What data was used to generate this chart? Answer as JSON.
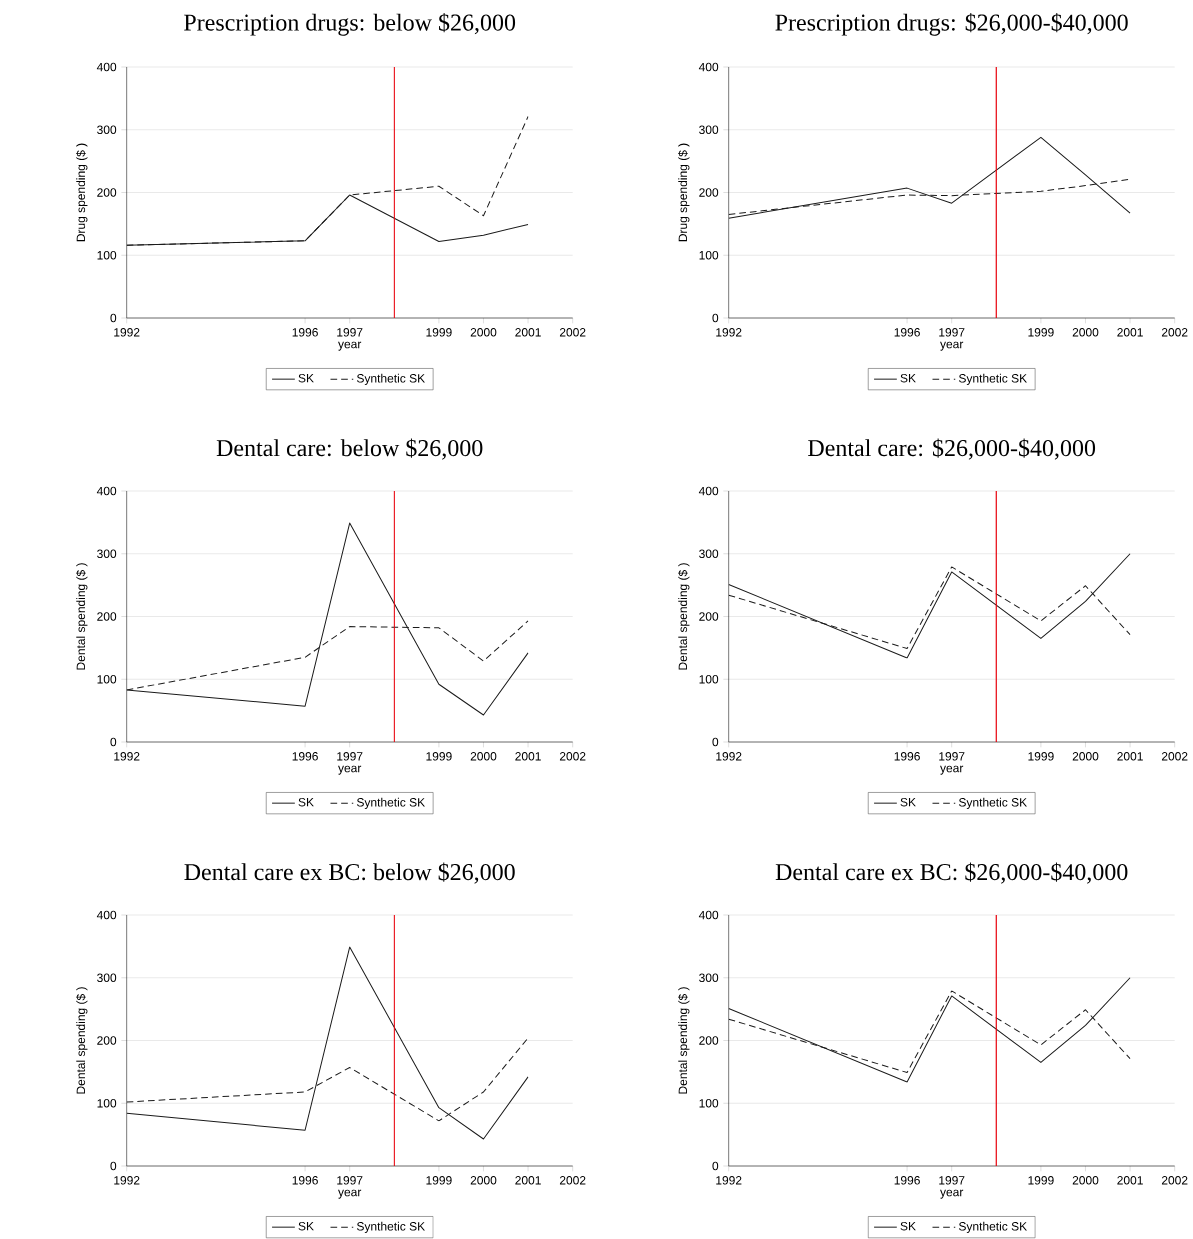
{
  "chart_data": [
    {
      "type": "line",
      "title": "Prescription drugs:  below $26,000",
      "xlabel": "year",
      "ylabel": "Drug spending ($ )",
      "x": [
        1992,
        1996,
        1997,
        1999,
        2000,
        2001
      ],
      "series": [
        {
          "name": "SK",
          "color": "#1a1a1a",
          "line_style": "solid",
          "values": [
            116,
            123,
            196,
            122,
            132,
            149
          ]
        },
        {
          "name": "Synthetic SK",
          "color": "#1a1a1a",
          "line_style": "dashed",
          "values": [
            116,
            123,
            196,
            210,
            163,
            321
          ]
        }
      ],
      "xlim": [
        1992,
        2002
      ],
      "ylim": [
        0,
        400
      ],
      "xticks": [
        1992,
        1996,
        1997,
        1999,
        2000,
        2001,
        2002
      ],
      "yticks": [
        0,
        100,
        200,
        300,
        400
      ],
      "grid": "y",
      "legend": "bottom",
      "ref_lines": [
        {
          "axis": "x",
          "value": 1998,
          "color": "#e8000b"
        }
      ]
    },
    {
      "type": "line",
      "title": "Prescription drugs:  $26,000-$40,000",
      "xlabel": "year",
      "ylabel": "Drug spending ($ )",
      "x": [
        1992,
        1996,
        1997,
        1999,
        2000,
        2001
      ],
      "series": [
        {
          "name": "SK",
          "color": "#1a1a1a",
          "line_style": "solid",
          "values": [
            159,
            207,
            183,
            288,
            228,
            167
          ]
        },
        {
          "name": "Synthetic SK",
          "color": "#1a1a1a",
          "line_style": "dashed",
          "values": [
            165,
            196,
            195,
            202,
            211,
            221
          ]
        }
      ],
      "xlim": [
        1992,
        2002
      ],
      "ylim": [
        0,
        400
      ],
      "xticks": [
        1992,
        1996,
        1997,
        1999,
        2000,
        2001,
        2002
      ],
      "yticks": [
        0,
        100,
        200,
        300,
        400
      ],
      "grid": "y",
      "legend": "bottom",
      "ref_lines": [
        {
          "axis": "x",
          "value": 1998,
          "color": "#e8000b"
        }
      ]
    },
    {
      "type": "line",
      "title": "Dental care:  below $26,000",
      "xlabel": "year",
      "ylabel": "Dental spending ($ )",
      "x": [
        1992,
        1996,
        1997,
        1999,
        2000,
        2001
      ],
      "series": [
        {
          "name": "SK",
          "color": "#1a1a1a",
          "line_style": "solid",
          "values": [
            83,
            57,
            349,
            92,
            43,
            142
          ]
        },
        {
          "name": "Synthetic SK",
          "color": "#1a1a1a",
          "line_style": "dashed",
          "values": [
            83,
            135,
            184,
            182,
            129,
            193
          ]
        }
      ],
      "xlim": [
        1992,
        2002
      ],
      "ylim": [
        0,
        400
      ],
      "xticks": [
        1992,
        1996,
        1997,
        1999,
        2000,
        2001,
        2002
      ],
      "yticks": [
        0,
        100,
        200,
        300,
        400
      ],
      "grid": "y",
      "legend": "bottom",
      "ref_lines": [
        {
          "axis": "x",
          "value": 1998,
          "color": "#e8000b"
        }
      ]
    },
    {
      "type": "line",
      "title": "Dental care:  $26,000-$40,000",
      "xlabel": "year",
      "ylabel": "Dental spending ($ )",
      "x": [
        1992,
        1996,
        1997,
        1999,
        2000,
        2001
      ],
      "series": [
        {
          "name": "SK",
          "color": "#1a1a1a",
          "line_style": "solid",
          "values": [
            251,
            134,
            271,
            165,
            224,
            300
          ]
        },
        {
          "name": "Synthetic SK",
          "color": "#1a1a1a",
          "line_style": "dashed",
          "values": [
            234,
            149,
            279,
            193,
            249,
            171
          ]
        }
      ],
      "xlim": [
        1992,
        2002
      ],
      "ylim": [
        0,
        400
      ],
      "xticks": [
        1992,
        1996,
        1997,
        1999,
        2000,
        2001,
        2002
      ],
      "yticks": [
        0,
        100,
        200,
        300,
        400
      ],
      "grid": "y",
      "legend": "bottom",
      "ref_lines": [
        {
          "axis": "x",
          "value": 1998,
          "color": "#e8000b"
        }
      ]
    },
    {
      "type": "line",
      "title": "Dental care ex BC:  below $26,000",
      "xlabel": "year",
      "ylabel": "Dental spending ($ )",
      "x": [
        1992,
        1996,
        1997,
        1999,
        2000,
        2001
      ],
      "series": [
        {
          "name": "SK",
          "color": "#1a1a1a",
          "line_style": "solid",
          "values": [
            84,
            57,
            349,
            93,
            43,
            142
          ]
        },
        {
          "name": "Synthetic SK",
          "color": "#1a1a1a",
          "line_style": "dashed",
          "values": [
            102,
            118,
            157,
            72,
            118,
            204
          ]
        }
      ],
      "xlim": [
        1992,
        2002
      ],
      "ylim": [
        0,
        400
      ],
      "xticks": [
        1992,
        1996,
        1997,
        1999,
        2000,
        2001,
        2002
      ],
      "yticks": [
        0,
        100,
        200,
        300,
        400
      ],
      "grid": "y",
      "legend": "bottom",
      "ref_lines": [
        {
          "axis": "x",
          "value": 1998,
          "color": "#e8000b"
        }
      ]
    },
    {
      "type": "line",
      "title": "Dental care ex BC:  $26,000-$40,000",
      "xlabel": "year",
      "ylabel": "Dental spending ($ )",
      "x": [
        1992,
        1996,
        1997,
        1999,
        2000,
        2001
      ],
      "series": [
        {
          "name": "SK",
          "color": "#1a1a1a",
          "line_style": "solid",
          "values": [
            251,
            134,
            271,
            165,
            224,
            300
          ]
        },
        {
          "name": "Synthetic SK",
          "color": "#1a1a1a",
          "line_style": "dashed",
          "values": [
            234,
            149,
            279,
            193,
            249,
            171
          ]
        }
      ],
      "xlim": [
        1992,
        2002
      ],
      "ylim": [
        0,
        400
      ],
      "xticks": [
        1992,
        1996,
        1997,
        1999,
        2000,
        2001,
        2002
      ],
      "yticks": [
        0,
        100,
        200,
        300,
        400
      ],
      "grid": "y",
      "legend": "bottom",
      "ref_lines": [
        {
          "axis": "x",
          "value": 1998,
          "color": "#e8000b"
        }
      ]
    }
  ]
}
